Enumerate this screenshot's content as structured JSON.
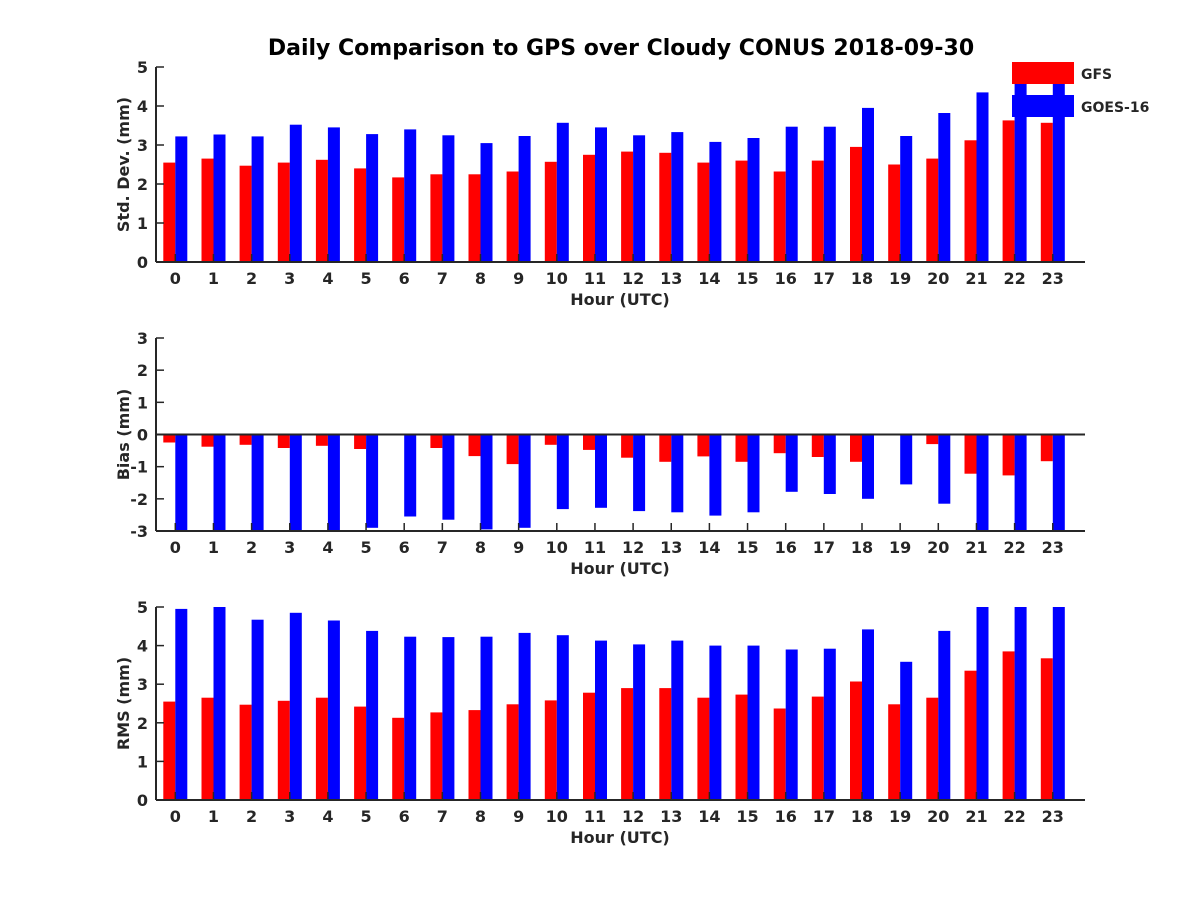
{
  "figure": {
    "title": "Daily Comparison to GPS over Cloudy CONUS 2018-09-30",
    "colors": {
      "GFS": "#ff0000",
      "GOES-16": "#0000ff",
      "axis": "#262626",
      "text": "#262626"
    }
  },
  "legend": {
    "placement": "top-right",
    "entries": [
      "GFS",
      "GOES-16"
    ]
  },
  "chart_data": [
    {
      "type": "bar",
      "categories": [
        "0",
        "1",
        "2",
        "3",
        "4",
        "5",
        "6",
        "7",
        "8",
        "9",
        "10",
        "11",
        "12",
        "13",
        "14",
        "15",
        "16",
        "17",
        "18",
        "19",
        "20",
        "21",
        "22",
        "23"
      ],
      "xlabel": "Hour (UTC)",
      "ylabel": "Std. Dev. (mm)",
      "ylim": [
        0,
        5
      ],
      "yticks": [
        "0",
        "1",
        "2",
        "3",
        "4",
        "5"
      ],
      "grid": false,
      "series": [
        {
          "name": "GFS",
          "values": [
            2.55,
            2.65,
            2.47,
            2.55,
            2.62,
            2.4,
            2.17,
            2.25,
            2.25,
            2.32,
            2.57,
            2.75,
            2.83,
            2.8,
            2.55,
            2.6,
            2.32,
            2.6,
            2.95,
            2.5,
            2.65,
            3.12,
            3.63,
            3.57
          ]
        },
        {
          "name": "GOES-16",
          "values": [
            3.22,
            3.27,
            3.22,
            3.52,
            3.45,
            3.28,
            3.4,
            3.25,
            3.05,
            3.23,
            3.57,
            3.45,
            3.25,
            3.33,
            3.08,
            3.18,
            3.47,
            3.47,
            3.95,
            3.23,
            3.82,
            4.35,
            4.8,
            4.65
          ]
        }
      ]
    },
    {
      "type": "bar",
      "categories": [
        "0",
        "1",
        "2",
        "3",
        "4",
        "5",
        "6",
        "7",
        "8",
        "9",
        "10",
        "11",
        "12",
        "13",
        "14",
        "15",
        "16",
        "17",
        "18",
        "19",
        "20",
        "21",
        "22",
        "23"
      ],
      "xlabel": "Hour (UTC)",
      "ylabel": "Bias (mm)",
      "ylim": [
        -3,
        3
      ],
      "yticks": [
        "-3",
        "-2",
        "-1",
        "0",
        "1",
        "2",
        "3"
      ],
      "grid": false,
      "series": [
        {
          "name": "GFS",
          "values": [
            -0.25,
            -0.38,
            -0.32,
            -0.42,
            -0.35,
            -0.45,
            0.0,
            -0.42,
            -0.67,
            -0.92,
            -0.32,
            -0.48,
            -0.72,
            -0.85,
            -0.68,
            -0.85,
            -0.58,
            -0.7,
            -0.85,
            0.0,
            -0.3,
            -1.22,
            -1.27,
            -0.83
          ]
        },
        {
          "name": "GOES-16",
          "values": [
            -3.0,
            -3.0,
            -3.0,
            -3.0,
            -3.0,
            -2.9,
            -2.55,
            -2.65,
            -2.95,
            -2.9,
            -2.32,
            -2.28,
            -2.38,
            -2.42,
            -2.52,
            -2.42,
            -1.78,
            -1.85,
            -2.0,
            -1.55,
            -2.15,
            -3.0,
            -3.0,
            -3.0
          ]
        }
      ]
    },
    {
      "type": "bar",
      "categories": [
        "0",
        "1",
        "2",
        "3",
        "4",
        "5",
        "6",
        "7",
        "8",
        "9",
        "10",
        "11",
        "12",
        "13",
        "14",
        "15",
        "16",
        "17",
        "18",
        "19",
        "20",
        "21",
        "22",
        "23"
      ],
      "xlabel": "Hour (UTC)",
      "ylabel": "RMS (mm)",
      "ylim": [
        0,
        5
      ],
      "yticks": [
        "0",
        "1",
        "2",
        "3",
        "4",
        "5"
      ],
      "grid": false,
      "series": [
        {
          "name": "GFS",
          "values": [
            2.55,
            2.65,
            2.47,
            2.57,
            2.65,
            2.42,
            2.13,
            2.27,
            2.33,
            2.48,
            2.58,
            2.78,
            2.9,
            2.9,
            2.65,
            2.73,
            2.37,
            2.68,
            3.07,
            2.48,
            2.65,
            3.35,
            3.85,
            3.67
          ]
        },
        {
          "name": "GOES-16",
          "values": [
            4.95,
            5.0,
            4.67,
            4.85,
            4.65,
            4.38,
            4.23,
            4.22,
            4.23,
            4.33,
            4.27,
            4.13,
            4.03,
            4.13,
            4.0,
            4.0,
            3.9,
            3.92,
            4.42,
            3.58,
            4.38,
            5.0,
            5.0,
            5.0
          ]
        }
      ]
    }
  ]
}
